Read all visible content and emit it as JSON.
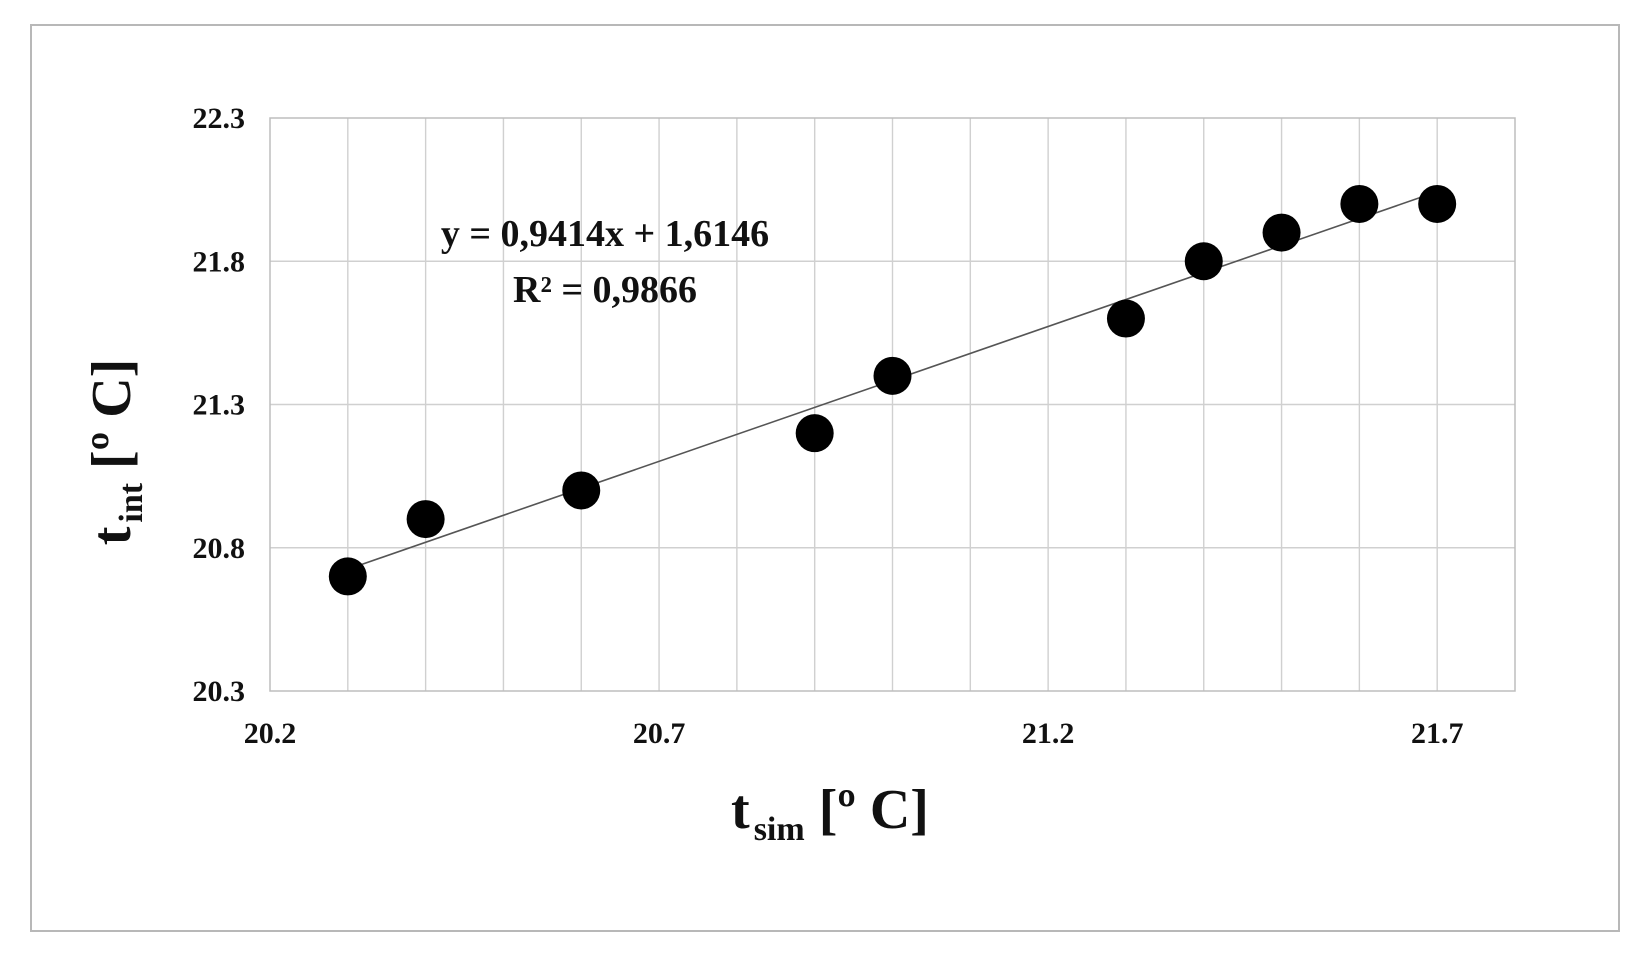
{
  "chart_data": {
    "type": "scatter",
    "xlabel": {
      "main": "t",
      "sub": "sim",
      "unit": "[º C]"
    },
    "ylabel": {
      "main": "t",
      "sub": "int",
      "unit": "[º C]"
    },
    "xlim": [
      20.2,
      21.8
    ],
    "ylim": [
      20.3,
      22.3
    ],
    "x_ticks": [
      "20.2",
      "20.7",
      "21.2",
      "21.7"
    ],
    "y_ticks": [
      "20.3",
      "20.8",
      "21.3",
      "21.8",
      "22.3"
    ],
    "grid": true,
    "x_minor_grid_step": 0.1,
    "y_grid_step": 0.5,
    "points": [
      {
        "x": 20.3,
        "y": 20.7
      },
      {
        "x": 20.4,
        "y": 20.9
      },
      {
        "x": 20.6,
        "y": 21.0
      },
      {
        "x": 20.9,
        "y": 21.2
      },
      {
        "x": 21.0,
        "y": 21.4
      },
      {
        "x": 21.3,
        "y": 21.6
      },
      {
        "x": 21.4,
        "y": 21.8
      },
      {
        "x": 21.5,
        "y": 21.9
      },
      {
        "x": 21.6,
        "y": 22.0
      },
      {
        "x": 21.7,
        "y": 22.0
      }
    ],
    "trendline": {
      "slope": 0.9414,
      "intercept": 1.6146,
      "x_range": [
        20.3,
        21.7
      ]
    },
    "annotations": [
      "y = 0,9414x + 1,6146",
      "R² = 0,9866"
    ],
    "marker_color": "#000000",
    "trendline_color": "#555555",
    "grid_color": "#d0d0d0"
  }
}
